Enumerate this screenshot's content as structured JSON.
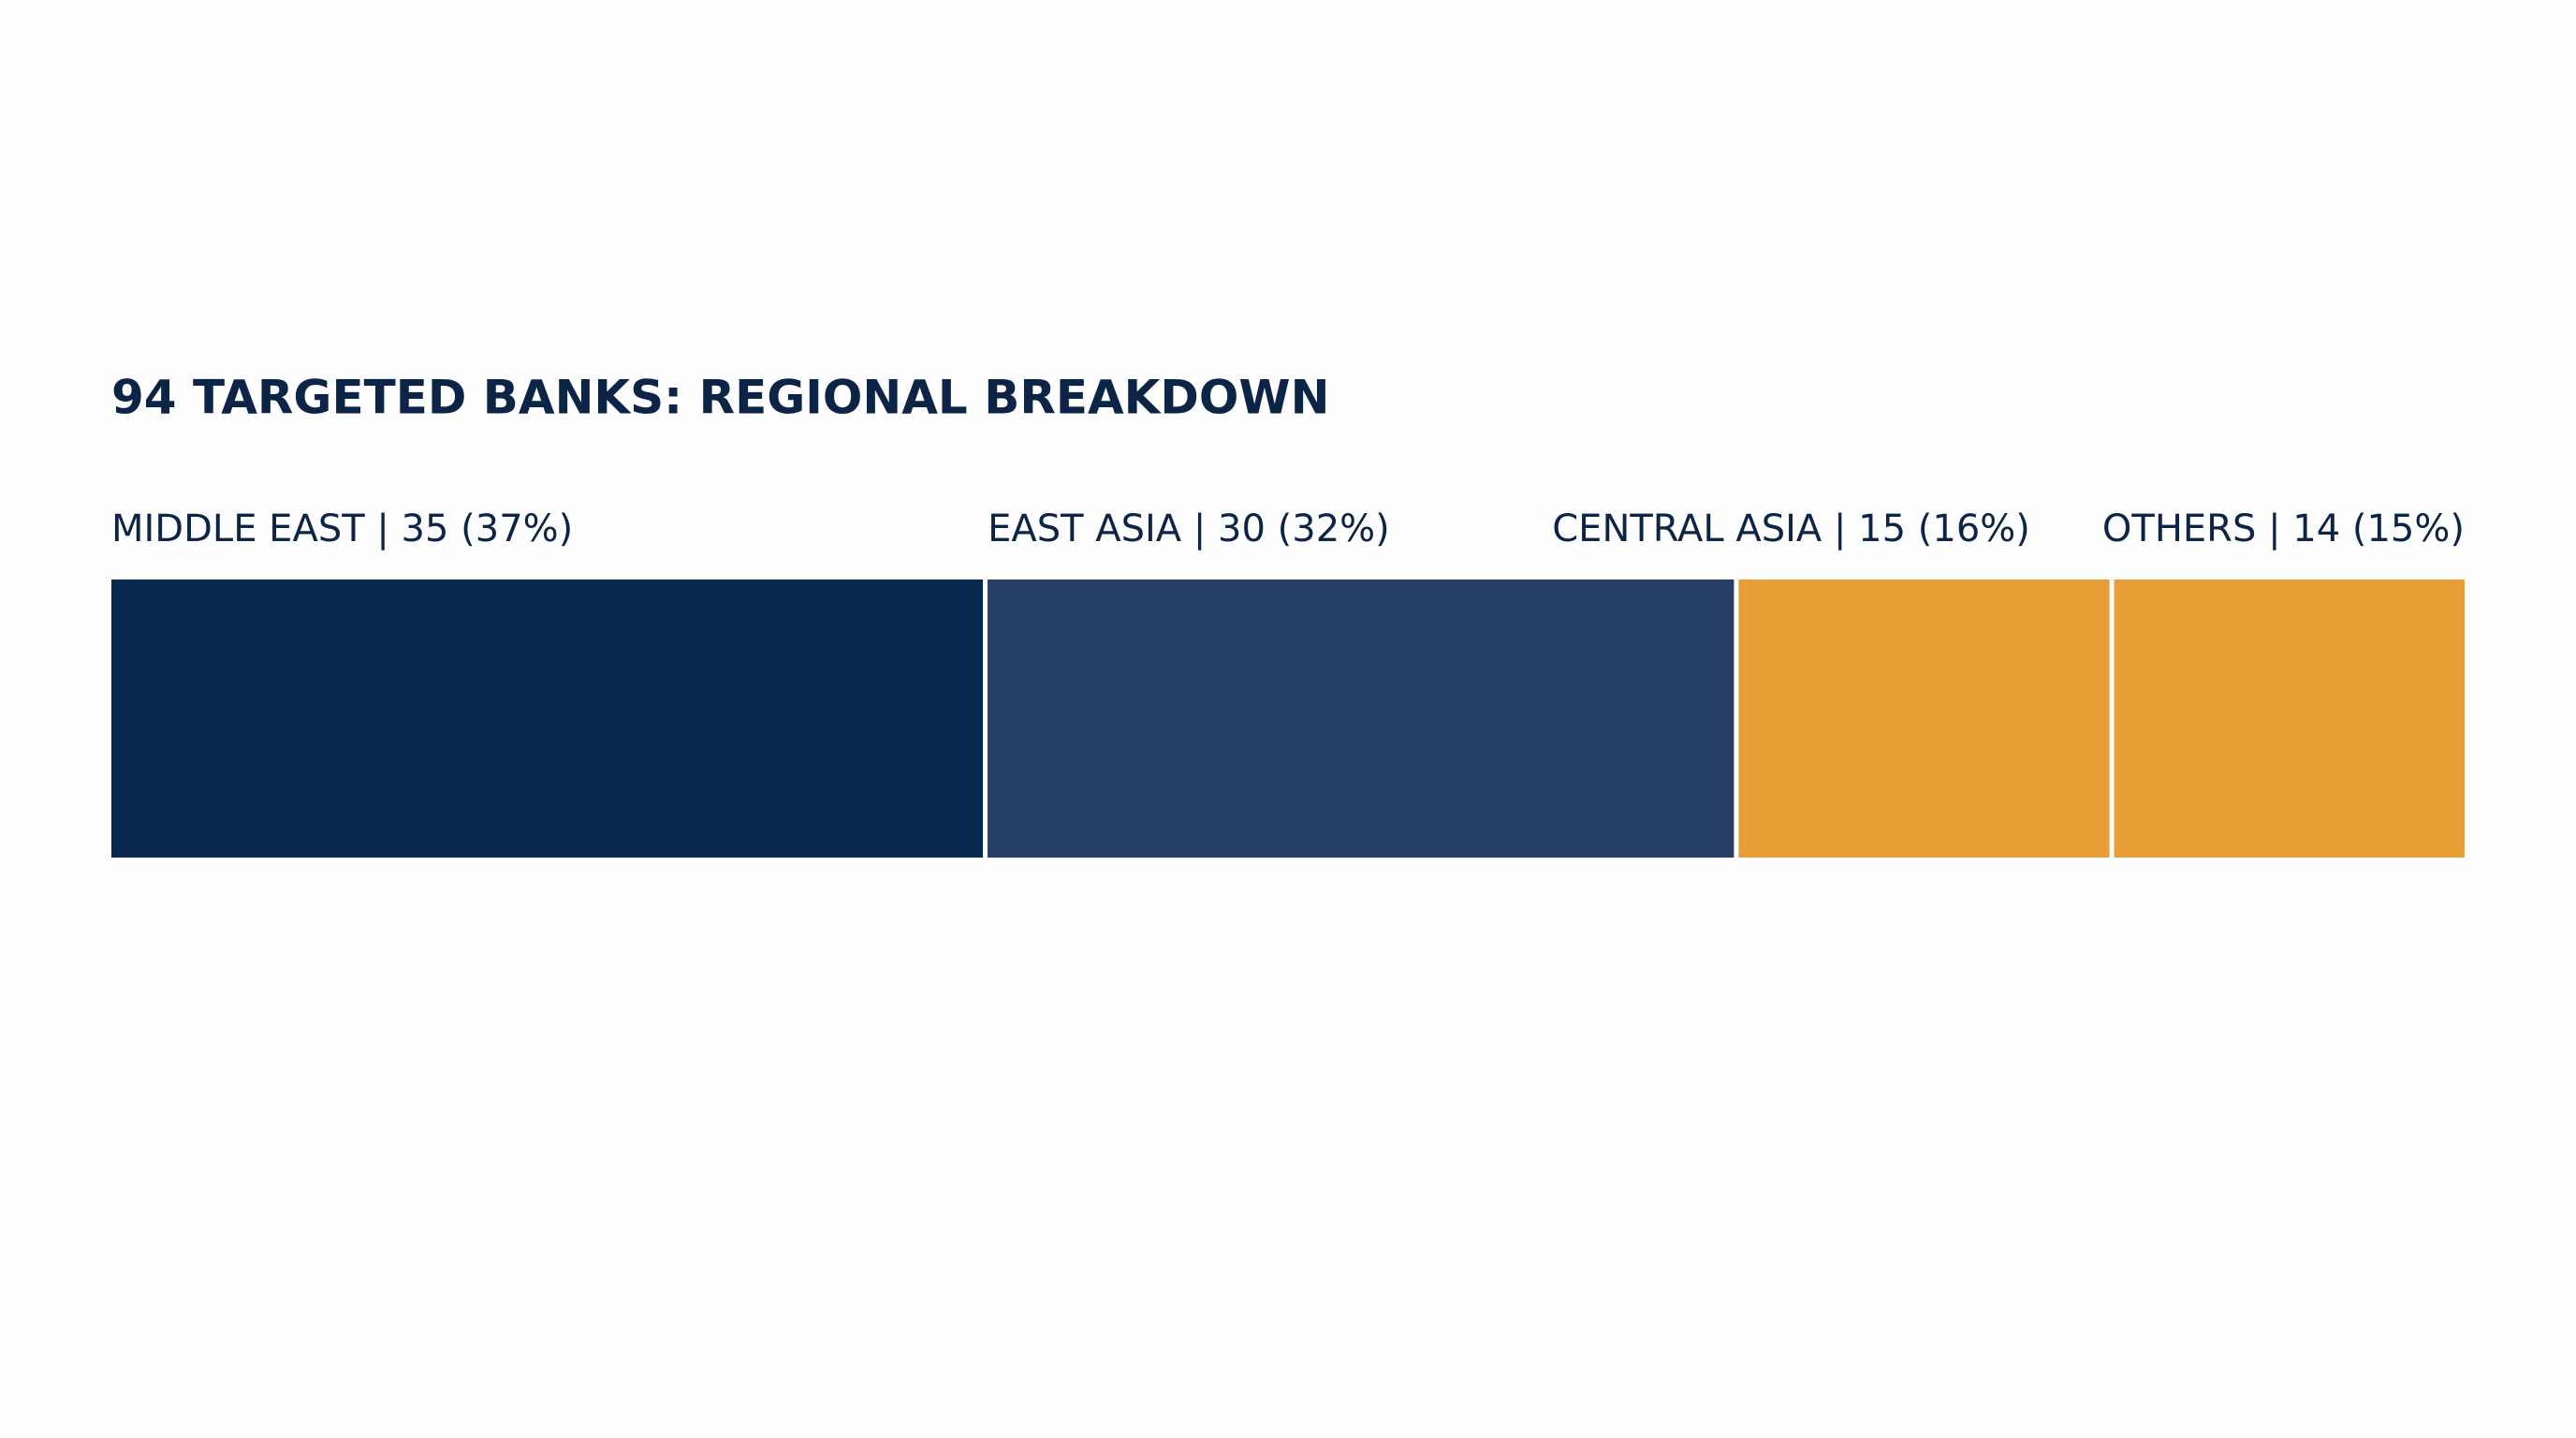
{
  "chart_data": {
    "type": "stacked_bar",
    "title": "94 TARGETED BANKS: REGIONAL BREAKDOWN",
    "values": [
      35,
      30,
      15,
      14
    ],
    "value_labels": [
      "MIDDLE EAST | 35 (37%)",
      "EAST ASIA | 30 (32%)",
      "CENTRAL ASIA | 15 (16%)",
      "OTHERS | 14 (15%)"
    ],
    "colors": [
      "#08284f",
      "#263d66",
      "#e89e37",
      "#e89e37"
    ]
  }
}
